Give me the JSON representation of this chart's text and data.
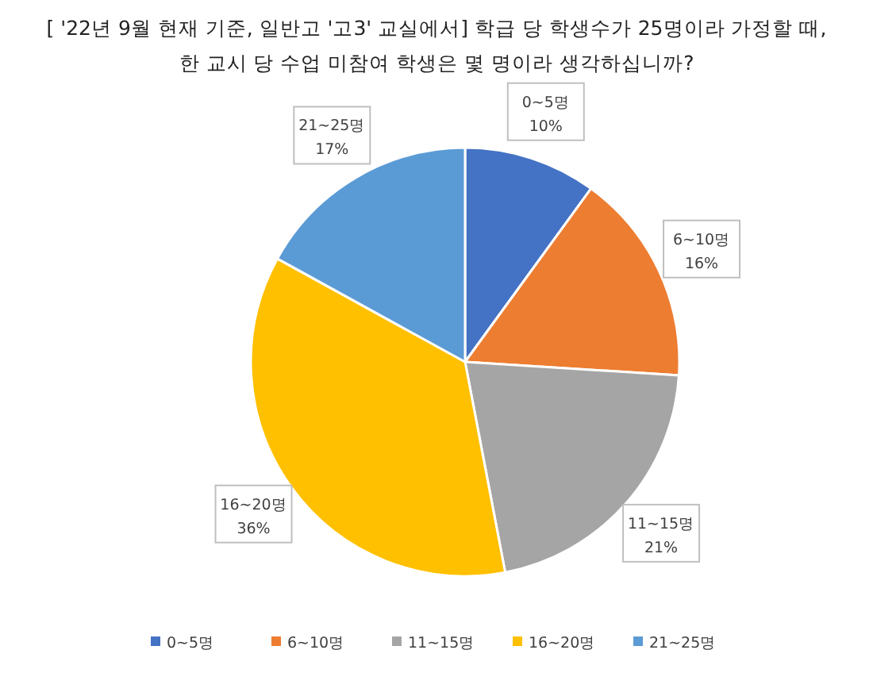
{
  "chart_data": {
    "type": "pie",
    "title": "[ '22년 9월 현재 기준, 일반고 '고3' 교실에서] 학급 당 학생수가 25명이라 가정할 때,\n한 교시 당 수업 미참여 학생은 몇 명이라 생각하십니까?",
    "categories": [
      "0~5명",
      "6~10명",
      "11~15명",
      "16~20명",
      "21~25명"
    ],
    "values": [
      10,
      16,
      21,
      36,
      17
    ],
    "value_labels": [
      "10%",
      "16%",
      "21%",
      "36%",
      "17%"
    ],
    "colors": [
      "#4472c4",
      "#ed7d31",
      "#a5a5a5",
      "#ffc000",
      "#5b9bd5"
    ],
    "legend": "bottom"
  }
}
